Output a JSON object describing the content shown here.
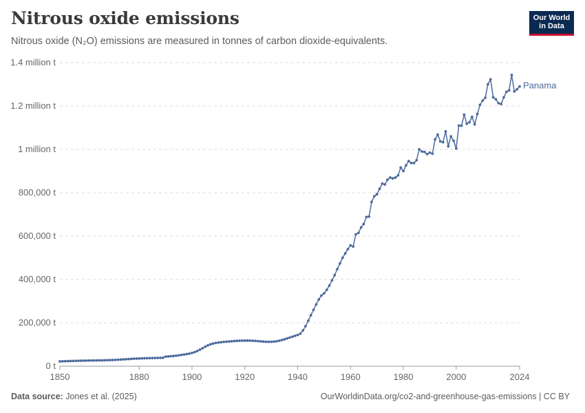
{
  "header": {
    "title": "Nitrous oxide emissions",
    "subtitle": "Nitrous oxide (N₂O) emissions are measured in tonnes of carbon dioxide-equivalents."
  },
  "logo": {
    "line1": "Our World",
    "line2": "in Data",
    "bg_color": "#0b2a52",
    "accent_color": "#c8102e"
  },
  "footer": {
    "source_label": "Data source:",
    "source_text": "Jones et al. (2025)",
    "url_text": "OurWorldinData.org/co2-and-greenhouse-gas-emissions | CC BY"
  },
  "chart_data": {
    "type": "line",
    "title": "Nitrous oxide emissions",
    "xlabel": "",
    "ylabel": "",
    "xlim": [
      1850,
      2024
    ],
    "ylim": [
      0,
      1400000
    ],
    "grid": "horizontal dashed",
    "line_color": "#4c6a9c",
    "x_ticks": [
      {
        "value": 1850,
        "label": "1850"
      },
      {
        "value": 1880,
        "label": "1880"
      },
      {
        "value": 1900,
        "label": "1900"
      },
      {
        "value": 1920,
        "label": "1920"
      },
      {
        "value": 1940,
        "label": "1940"
      },
      {
        "value": 1960,
        "label": "1960"
      },
      {
        "value": 1980,
        "label": "1980"
      },
      {
        "value": 2000,
        "label": "2000"
      },
      {
        "value": 2024,
        "label": "2024"
      }
    ],
    "y_ticks": [
      {
        "value": 0,
        "label": "0 t"
      },
      {
        "value": 200000,
        "label": "200,000 t"
      },
      {
        "value": 400000,
        "label": "400,000 t"
      },
      {
        "value": 600000,
        "label": "600,000 t"
      },
      {
        "value": 800000,
        "label": "800,000 t"
      },
      {
        "value": 1000000,
        "label": "1 million t"
      },
      {
        "value": 1200000,
        "label": "1.2 million t"
      },
      {
        "value": 1400000,
        "label": "1.4 million t"
      }
    ],
    "series": [
      {
        "name": "Panama",
        "points": [
          [
            1850,
            22000
          ],
          [
            1851,
            22500
          ],
          [
            1852,
            23000
          ],
          [
            1853,
            23500
          ],
          [
            1854,
            24000
          ],
          [
            1855,
            24300
          ],
          [
            1856,
            24600
          ],
          [
            1857,
            24900
          ],
          [
            1858,
            25200
          ],
          [
            1859,
            25500
          ],
          [
            1860,
            25800
          ],
          [
            1861,
            26000
          ],
          [
            1862,
            26200
          ],
          [
            1863,
            26400
          ],
          [
            1864,
            26600
          ],
          [
            1865,
            26800
          ],
          [
            1866,
            27000
          ],
          [
            1867,
            27300
          ],
          [
            1868,
            27600
          ],
          [
            1869,
            28000
          ],
          [
            1870,
            28500
          ],
          [
            1871,
            29000
          ],
          [
            1872,
            29700
          ],
          [
            1873,
            30500
          ],
          [
            1874,
            31200
          ],
          [
            1875,
            32000
          ],
          [
            1876,
            33000
          ],
          [
            1877,
            33800
          ],
          [
            1878,
            34500
          ],
          [
            1879,
            35000
          ],
          [
            1880,
            35500
          ],
          [
            1881,
            36000
          ],
          [
            1882,
            36400
          ],
          [
            1883,
            36800
          ],
          [
            1884,
            37200
          ],
          [
            1885,
            37500
          ],
          [
            1886,
            37800
          ],
          [
            1887,
            38100
          ],
          [
            1888,
            38400
          ],
          [
            1889,
            38700
          ],
          [
            1890,
            44000
          ],
          [
            1891,
            45000
          ],
          [
            1892,
            46000
          ],
          [
            1893,
            47000
          ],
          [
            1894,
            48500
          ],
          [
            1895,
            50000
          ],
          [
            1896,
            52000
          ],
          [
            1897,
            54000
          ],
          [
            1898,
            56000
          ],
          [
            1899,
            58000
          ],
          [
            1900,
            61000
          ],
          [
            1901,
            65000
          ],
          [
            1902,
            70000
          ],
          [
            1903,
            76000
          ],
          [
            1904,
            83000
          ],
          [
            1905,
            90000
          ],
          [
            1906,
            96000
          ],
          [
            1907,
            101000
          ],
          [
            1908,
            104500
          ],
          [
            1909,
            107000
          ],
          [
            1910,
            109000
          ],
          [
            1911,
            110500
          ],
          [
            1912,
            112000
          ],
          [
            1913,
            113000
          ],
          [
            1914,
            114000
          ],
          [
            1915,
            115000
          ],
          [
            1916,
            116000
          ],
          [
            1917,
            116800
          ],
          [
            1918,
            117300
          ],
          [
            1919,
            117700
          ],
          [
            1920,
            118000
          ],
          [
            1921,
            118000
          ],
          [
            1922,
            117800
          ],
          [
            1923,
            117300
          ],
          [
            1924,
            116500
          ],
          [
            1925,
            115500
          ],
          [
            1926,
            114500
          ],
          [
            1927,
            113500
          ],
          [
            1928,
            112800
          ],
          [
            1929,
            112400
          ],
          [
            1930,
            112500
          ],
          [
            1931,
            113500
          ],
          [
            1932,
            115000
          ],
          [
            1933,
            117500
          ],
          [
            1934,
            120500
          ],
          [
            1935,
            124000
          ],
          [
            1936,
            128000
          ],
          [
            1937,
            132000
          ],
          [
            1938,
            136000
          ],
          [
            1939,
            140000
          ],
          [
            1940,
            144000
          ],
          [
            1941,
            150000
          ],
          [
            1942,
            165000
          ],
          [
            1943,
            185000
          ],
          [
            1944,
            210000
          ],
          [
            1945,
            235000
          ],
          [
            1946,
            260000
          ],
          [
            1947,
            285000
          ],
          [
            1948,
            308000
          ],
          [
            1949,
            326000
          ],
          [
            1950,
            336000
          ],
          [
            1951,
            352000
          ],
          [
            1952,
            372000
          ],
          [
            1953,
            396000
          ],
          [
            1954,
            420000
          ],
          [
            1955,
            448000
          ],
          [
            1956,
            474000
          ],
          [
            1957,
            500000
          ],
          [
            1958,
            520000
          ],
          [
            1959,
            540000
          ],
          [
            1960,
            557000
          ],
          [
            1961,
            552000
          ],
          [
            1962,
            608000
          ],
          [
            1963,
            615000
          ],
          [
            1964,
            640000
          ],
          [
            1965,
            656000
          ],
          [
            1966,
            688000
          ],
          [
            1967,
            690000
          ],
          [
            1968,
            758000
          ],
          [
            1969,
            784000
          ],
          [
            1970,
            793000
          ],
          [
            1971,
            818000
          ],
          [
            1972,
            842000
          ],
          [
            1973,
            838000
          ],
          [
            1974,
            860000
          ],
          [
            1975,
            870000
          ],
          [
            1976,
            866000
          ],
          [
            1977,
            870000
          ],
          [
            1978,
            880000
          ],
          [
            1979,
            916000
          ],
          [
            1980,
            900000
          ],
          [
            1981,
            926000
          ],
          [
            1982,
            946000
          ],
          [
            1983,
            937000
          ],
          [
            1984,
            937000
          ],
          [
            1985,
            950000
          ],
          [
            1986,
            1000000
          ],
          [
            1987,
            990000
          ],
          [
            1988,
            988000
          ],
          [
            1989,
            978000
          ],
          [
            1990,
            985000
          ],
          [
            1991,
            980000
          ],
          [
            1992,
            1046000
          ],
          [
            1993,
            1068000
          ],
          [
            1994,
            1037000
          ],
          [
            1995,
            1033000
          ],
          [
            1996,
            1083000
          ],
          [
            1997,
            1014000
          ],
          [
            1998,
            1060000
          ],
          [
            1999,
            1040000
          ],
          [
            2000,
            1004000
          ],
          [
            2001,
            1110000
          ],
          [
            2002,
            1109000
          ],
          [
            2003,
            1160000
          ],
          [
            2004,
            1118000
          ],
          [
            2005,
            1125000
          ],
          [
            2006,
            1150000
          ],
          [
            2007,
            1115000
          ],
          [
            2008,
            1163000
          ],
          [
            2009,
            1205000
          ],
          [
            2010,
            1225000
          ],
          [
            2011,
            1238000
          ],
          [
            2012,
            1300000
          ],
          [
            2013,
            1323000
          ],
          [
            2014,
            1240000
          ],
          [
            2015,
            1231000
          ],
          [
            2016,
            1213000
          ],
          [
            2017,
            1209000
          ],
          [
            2018,
            1240000
          ],
          [
            2019,
            1265000
          ],
          [
            2020,
            1272000
          ],
          [
            2021,
            1343000
          ],
          [
            2022,
            1267000
          ],
          [
            2023,
            1277000
          ],
          [
            2024,
            1290000
          ]
        ]
      }
    ]
  }
}
